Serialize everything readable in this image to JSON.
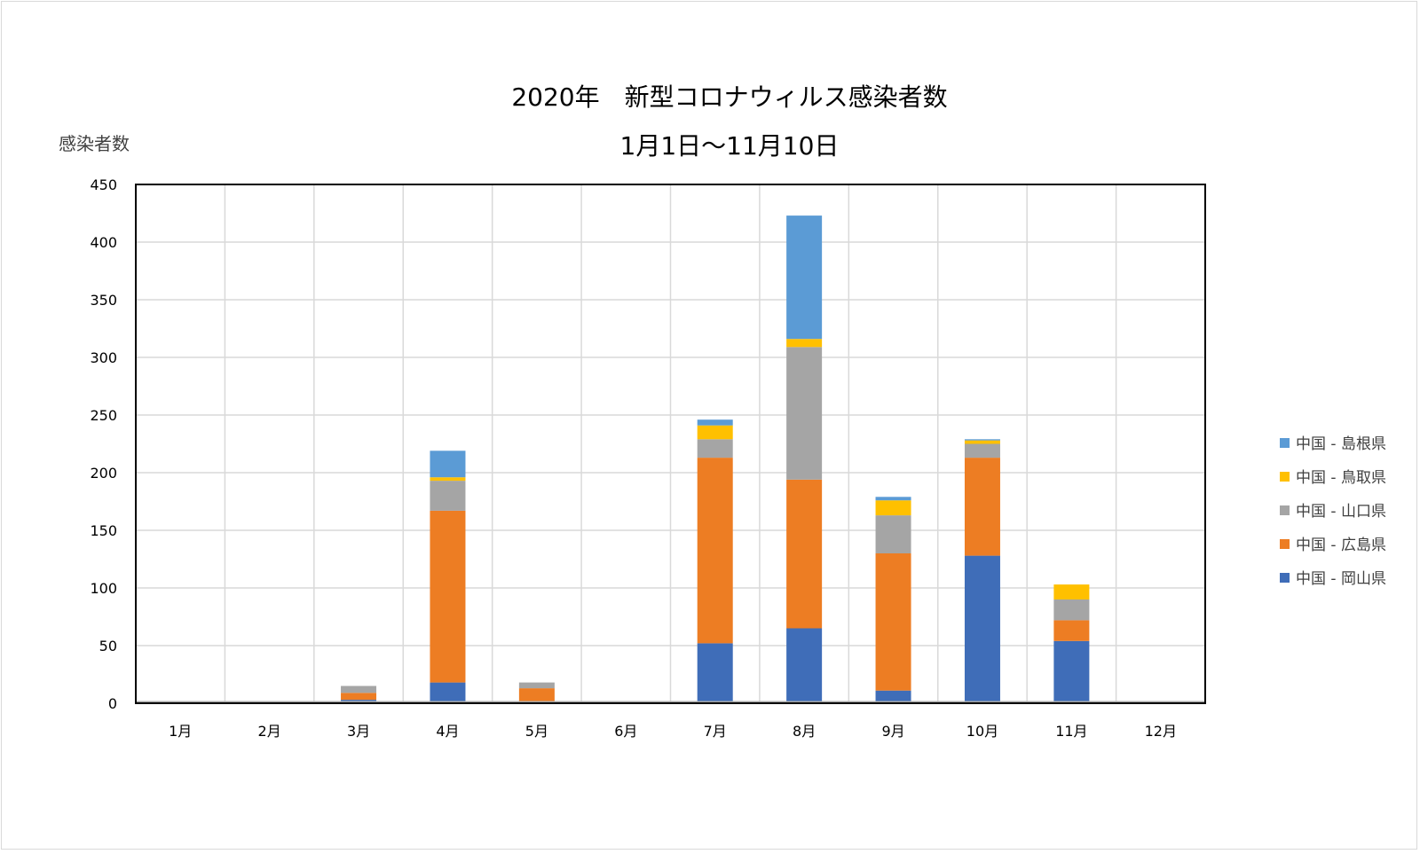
{
  "chart_data": {
    "type": "bar",
    "stacked": true,
    "title": "2020年　新型コロナウィルス感染者数",
    "subtitle": "1月1日～11月10日",
    "ylabel": "感染者数",
    "xlabel": "",
    "ylim": [
      0,
      450
    ],
    "yticks": [
      0,
      50,
      100,
      150,
      200,
      250,
      300,
      350,
      400,
      450
    ],
    "grid": true,
    "legend_position": "right",
    "categories": [
      "1月",
      "2月",
      "3月",
      "4月",
      "5月",
      "6月",
      "7月",
      "8月",
      "9月",
      "10月",
      "11月",
      "12月"
    ],
    "series": [
      {
        "name": "中国 - 岡山県",
        "color": "#3F6DB8",
        "values": [
          0,
          0,
          3,
          18,
          1,
          0,
          52,
          65,
          11,
          128,
          54,
          0
        ]
      },
      {
        "name": "中国 - 広島県",
        "color": "#ED7D23",
        "values": [
          0,
          0,
          6,
          149,
          12,
          1,
          161,
          129,
          119,
          85,
          18,
          0
        ]
      },
      {
        "name": "中国 - 山口県",
        "color": "#A5A5A5",
        "values": [
          0,
          0,
          6,
          26,
          5,
          0,
          16,
          115,
          33,
          12,
          18,
          0
        ]
      },
      {
        "name": "中国 - 鳥取県",
        "color": "#FFC000",
        "values": [
          0,
          0,
          0,
          3,
          0,
          0,
          12,
          7,
          13,
          3,
          13,
          0
        ]
      },
      {
        "name": "中国 - 島根県",
        "color": "#5B9BD5",
        "values": [
          0,
          0,
          0,
          23,
          0,
          0,
          5,
          107,
          3,
          1,
          0,
          0
        ]
      }
    ]
  }
}
